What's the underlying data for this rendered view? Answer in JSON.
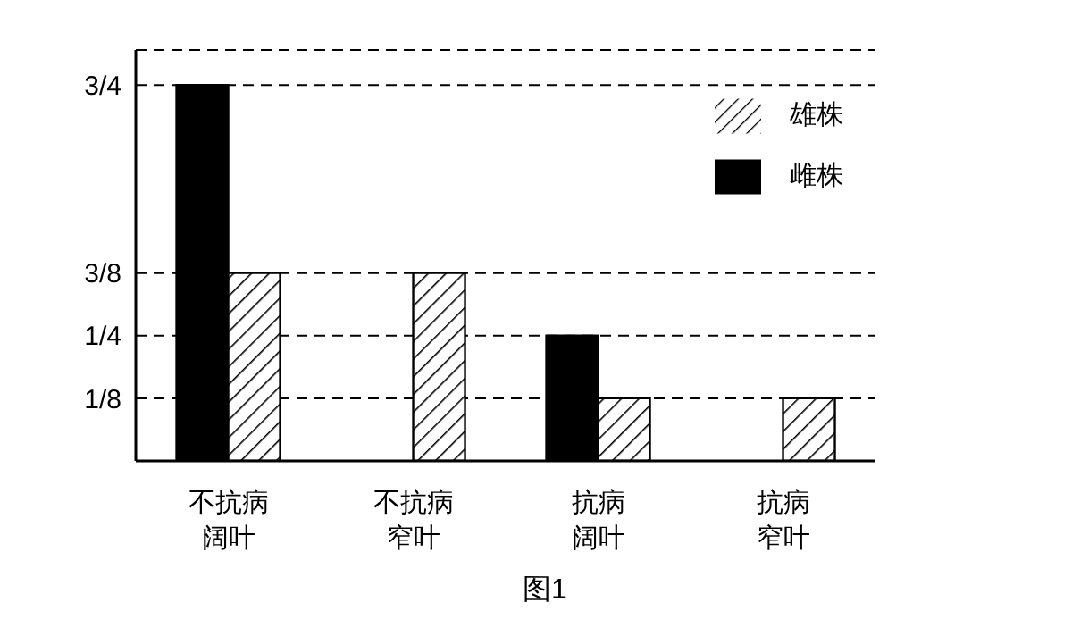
{
  "chart_data": {
    "type": "bar",
    "title": "图1",
    "categories": [
      "不抗病阔叶",
      "不抗病窄叶",
      "抗病阔叶",
      "抗病窄叶"
    ],
    "series": [
      {
        "name": "雌株",
        "color": "#000000",
        "values": [
          0.75,
          0,
          0.25,
          0
        ]
      },
      {
        "name": "雄株",
        "color": "#000000",
        "values": [
          0.375,
          0.375,
          0.125,
          0.125
        ]
      }
    ],
    "ylim": [
      0,
      0.82
    ],
    "yticks": [
      {
        "value": 0.125,
        "label": "1/8"
      },
      {
        "value": 0.25,
        "label": "1/4"
      },
      {
        "value": 0.375,
        "label": "3/8"
      },
      {
        "value": 0.75,
        "label": "3/4"
      }
    ],
    "grid": "y",
    "legend": "top right"
  }
}
